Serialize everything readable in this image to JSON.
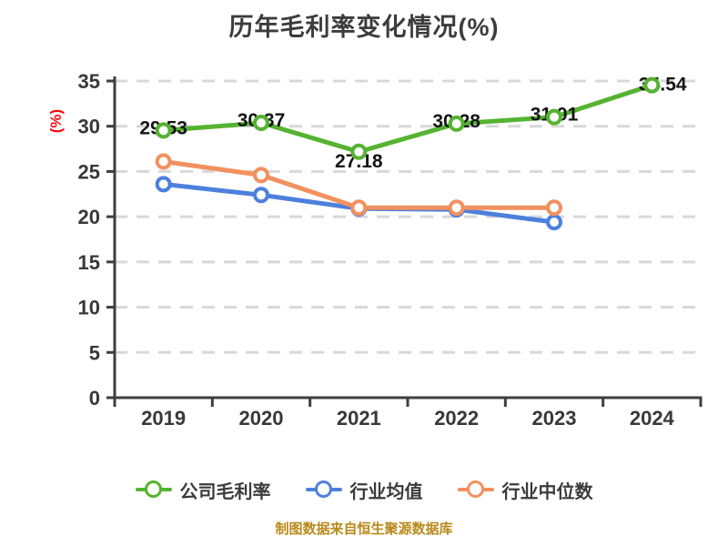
{
  "title": "历年毛利率变化情况(%)",
  "y_axis_unit": "(%)",
  "source_note": "制图数据来自恒生聚源数据库",
  "colors": {
    "background": "#ffffff",
    "title_text": "#3c3c3c",
    "axis": "#3e3e3e",
    "tick_text": "#383838",
    "grid": "#d8d8d8",
    "data_label": "#141414",
    "y_unit_red": "#f40d0d",
    "source_text": "#b98a1b",
    "company": "#55b331",
    "industry_avg": "#4d80dd",
    "industry_median": "#f2915f"
  },
  "chart_data": {
    "type": "line",
    "title": "历年毛利率变化情况(%)",
    "categories": [
      "2019",
      "2020",
      "2021",
      "2022",
      "2023",
      "2024"
    ],
    "series": [
      {
        "key": "company",
        "name": "公司毛利率",
        "color_key": "company",
        "values": [
          29.53,
          30.37,
          27.18,
          30.28,
          31.01,
          34.54
        ],
        "show_labels": true
      },
      {
        "key": "industry-avg",
        "name": "行业均值",
        "color_key": "industry_avg",
        "values": [
          23.6,
          22.4,
          20.9,
          20.8,
          19.4,
          null
        ],
        "show_labels": false
      },
      {
        "key": "industry-median",
        "name": "行业中位数",
        "color_key": "industry_median",
        "values": [
          26.1,
          24.6,
          21.0,
          21.0,
          21.0,
          null
        ],
        "show_labels": false
      }
    ],
    "ylabel": "(%)",
    "ylim": [
      0,
      35
    ],
    "ytick_step": 5,
    "yticks": [
      0,
      5,
      10,
      15,
      20,
      25,
      30,
      35
    ],
    "grid": "horizontal-dashed",
    "legend_position": "bottom",
    "marker": "circle-white-filled"
  }
}
